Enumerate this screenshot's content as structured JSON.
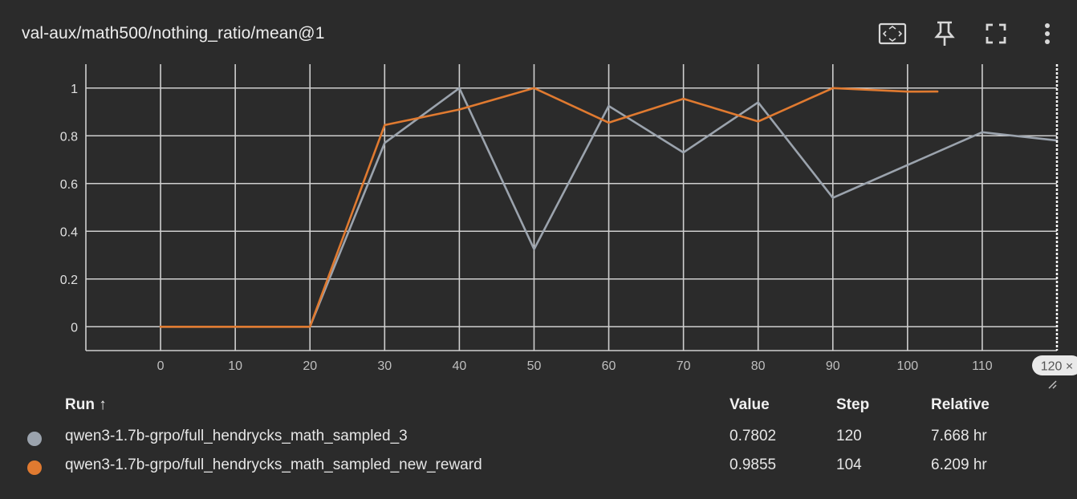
{
  "title": "val-aux/math500/nothing_ratio/mean@1",
  "toolbar": {
    "icons": [
      "fit-domain-icon",
      "pin-icon",
      "fullscreen-icon",
      "more-vert-icon"
    ]
  },
  "colors": {
    "background": "#2b2b2b",
    "grid": "#cfcfcf",
    "series_gray": "#9ba3ad",
    "series_orange": "#e07a30"
  },
  "chart_data": {
    "type": "line",
    "xlim": [
      -10,
      120
    ],
    "ylim": [
      -0.1,
      1.1
    ],
    "x_ticks": [
      "0",
      "10",
      "20",
      "30",
      "40",
      "50",
      "60",
      "70",
      "80",
      "90",
      "100",
      "110"
    ],
    "y_ticks": [
      "0",
      "0.2",
      "0.4",
      "0.6",
      "0.8",
      "1"
    ],
    "cursor_step": 120,
    "cursor_label": "120 ×",
    "grid": true,
    "series": [
      {
        "name": "qwen3-1.7b-grpo/full_hendrycks_math_sampled_3",
        "color": "#9ba3ad",
        "x": [
          0,
          10,
          20,
          30,
          40,
          50,
          60,
          70,
          80,
          90,
          110,
          120
        ],
        "y": [
          0,
          0,
          0,
          0.77,
          1.0,
          0.325,
          0.925,
          0.73,
          0.94,
          0.54,
          0.815,
          0.7802
        ]
      },
      {
        "name": "qwen3-1.7b-grpo/full_hendrycks_math_sampled_new_reward",
        "color": "#e07a30",
        "x": [
          0,
          10,
          20,
          30,
          40,
          50,
          60,
          70,
          80,
          90,
          100,
          104
        ],
        "y": [
          0,
          0,
          0,
          0.845,
          0.91,
          1.0,
          0.855,
          0.955,
          0.86,
          1.0,
          0.985,
          0.9855
        ]
      }
    ]
  },
  "legend": {
    "headers": {
      "run": "Run ↑",
      "value": "Value",
      "step": "Step",
      "relative": "Relative"
    },
    "rows": [
      {
        "run": "qwen3-1.7b-grpo/full_hendrycks_math_sampled_3",
        "value": "0.7802",
        "step": "120",
        "relative": "7.668 hr",
        "color": "#9ba3ad"
      },
      {
        "run": "qwen3-1.7b-grpo/full_hendrycks_math_sampled_new_reward",
        "value": "0.9855",
        "step": "104",
        "relative": "6.209 hr",
        "color": "#e07a30"
      }
    ]
  }
}
